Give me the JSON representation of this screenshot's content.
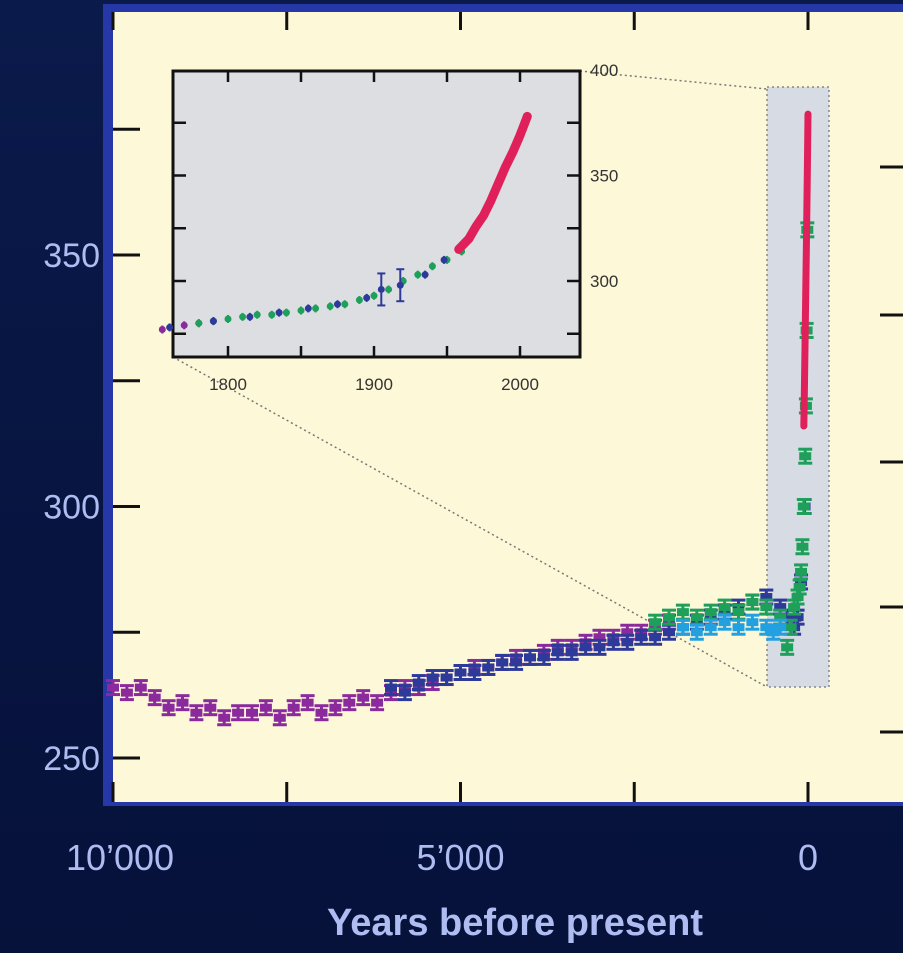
{
  "chart_data": [
    {
      "type": "scatter",
      "title": "",
      "xlabel": "Years before present",
      "ylabel": "",
      "x_reversed": true,
      "xlim": [
        10000,
        0
      ],
      "ylim": [
        245,
        395
      ],
      "x_ticks": [
        10000,
        5000,
        0
      ],
      "x_tick_labels": [
        "10’000",
        "5’000",
        "0"
      ],
      "y_ticks": [
        250,
        300,
        350
      ],
      "y_tick_labels": [
        "250",
        "300",
        "350"
      ],
      "grid": false,
      "legend": "none",
      "series": [
        {
          "color": "#8b2a9c",
          "marker": "error-bar",
          "x": [
            10000,
            9800,
            9600,
            9400,
            9200,
            9000,
            8800,
            8600,
            8400,
            8200,
            8000,
            7800,
            7600,
            7400,
            7200,
            7000,
            6800,
            6600,
            6400,
            6200,
            6000,
            5800,
            5600,
            5400,
            5200,
            5000,
            4800,
            4600,
            4400,
            4200,
            4000,
            3800,
            3600,
            3400,
            3200,
            3000,
            2800,
            2600,
            2400,
            2200,
            2000
          ],
          "y": [
            264,
            263,
            264,
            262,
            260,
            261,
            259,
            260,
            258,
            259,
            259,
            260,
            258,
            260,
            261,
            259,
            260,
            261,
            262,
            261,
            263,
            264,
            264,
            265,
            266,
            267,
            268,
            268,
            269,
            270,
            270,
            271,
            272,
            272,
            273,
            274,
            274,
            275,
            275,
            276,
            277
          ]
        },
        {
          "color": "#2e3a9a",
          "marker": "error-bar",
          "x": [
            6000,
            5800,
            5600,
            5400,
            5200,
            5000,
            4800,
            4600,
            4400,
            4200,
            4000,
            3800,
            3600,
            3400,
            3200,
            3000,
            2800,
            2600,
            2400,
            2200,
            2000,
            1800,
            1600,
            1400,
            1200,
            1000,
            800,
            600,
            400,
            300,
            200,
            150,
            100,
            50
          ],
          "y": [
            264,
            263,
            265,
            266,
            266,
            267,
            267,
            268,
            269,
            269,
            270,
            270,
            271,
            271,
            272,
            272,
            273,
            273,
            274,
            274,
            275,
            276,
            277,
            278,
            279,
            280,
            281,
            282,
            280,
            278,
            276,
            278,
            285,
            300
          ]
        },
        {
          "color": "#1fa05a",
          "marker": "error-bar",
          "x": [
            2200,
            2000,
            1800,
            1600,
            1400,
            1200,
            1000,
            800,
            600,
            400,
            300,
            250,
            200,
            150,
            120,
            100,
            80,
            60,
            40,
            30,
            20,
            10
          ],
          "y": [
            277,
            278,
            279,
            278,
            279,
            280,
            279,
            281,
            280,
            278,
            272,
            276,
            280,
            282,
            284,
            287,
            292,
            300,
            310,
            320,
            335,
            355
          ]
        },
        {
          "color": "#22a0e0",
          "marker": "error-bar",
          "x": [
            1800,
            1600,
            1400,
            1200,
            1000,
            800,
            600,
            500,
            400
          ],
          "y": [
            276,
            275,
            276,
            277,
            276,
            277,
            276,
            275,
            276
          ]
        },
        {
          "color": "#e0205a",
          "marker": "line",
          "x": [
            60,
            50,
            40,
            30,
            20,
            10,
            0
          ],
          "y": [
            316,
            325,
            335,
            345,
            355,
            366,
            378
          ]
        }
      ]
    },
    {
      "type": "scatter",
      "title": "",
      "xlabel": "",
      "ylabel": "",
      "xlim": [
        1750,
        2050
      ],
      "ylim": [
        262,
        400
      ],
      "x_ticks": [
        1800,
        1900,
        2000
      ],
      "x_tick_labels": [
        "1800",
        "1900",
        "2000"
      ],
      "y_ticks": [
        300,
        350,
        400
      ],
      "y_tick_labels": [
        "300",
        "350",
        "400"
      ],
      "grid": false,
      "legend": "none",
      "series": [
        {
          "color": "#8b2a9c",
          "marker": "error-bar",
          "x": [
            1755,
            1770,
            1780
          ],
          "y": [
            277,
            279,
            280
          ]
        },
        {
          "color": "#1fa05a",
          "marker": "error-bar",
          "x": [
            1780,
            1790,
            1800,
            1810,
            1820,
            1830,
            1840,
            1850,
            1860,
            1870,
            1880,
            1890,
            1900,
            1910,
            1920,
            1930,
            1940,
            1950,
            1960
          ],
          "y": [
            280,
            281,
            282,
            283,
            284,
            284,
            285,
            286,
            287,
            288,
            289,
            291,
            293,
            296,
            300,
            303,
            307,
            310,
            314
          ]
        },
        {
          "color": "#2e3a9a",
          "marker": "error-bar",
          "x": [
            1760,
            1790,
            1815,
            1835,
            1855,
            1875,
            1895,
            1905,
            1918,
            1935,
            1948
          ],
          "y": [
            278,
            281,
            283,
            285,
            287,
            289,
            292,
            296,
            298,
            303,
            310
          ]
        },
        {
          "color": "#e0205a",
          "marker": "line",
          "x": [
            1958,
            1965,
            1970,
            1975,
            1980,
            1985,
            1990,
            1995,
            2000,
            2005
          ],
          "y": [
            315,
            320,
            326,
            331,
            338,
            346,
            354,
            361,
            369,
            378
          ]
        }
      ]
    }
  ],
  "inset_tick_labels": {
    "x": [
      "1800",
      "1900",
      "2000"
    ],
    "y": [
      "300",
      "350",
      "400"
    ]
  }
}
